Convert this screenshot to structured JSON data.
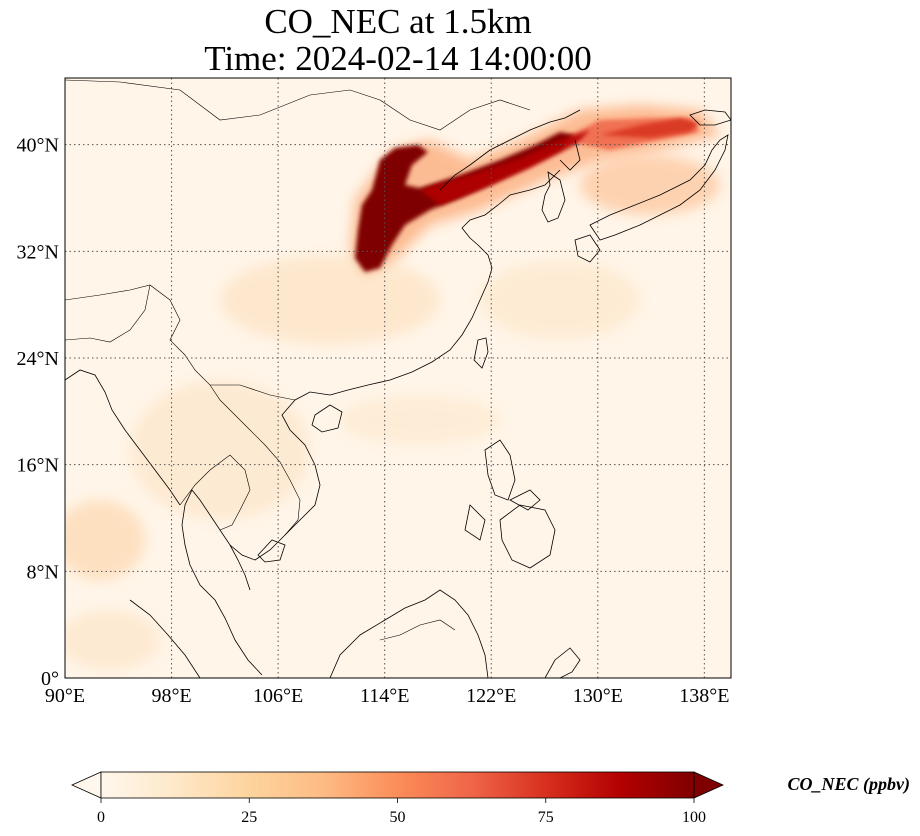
{
  "figure": {
    "title_line1": "CO_NEC at 1.5km",
    "title_line2": "Time: 2024-02-14 14:00:00"
  },
  "map": {
    "lon_range": [
      90,
      140
    ],
    "lat_range": [
      0,
      45
    ],
    "x_ticks": [
      {
        "value": 90,
        "label": "90°E"
      },
      {
        "value": 98,
        "label": "98°E"
      },
      {
        "value": 106,
        "label": "106°E"
      },
      {
        "value": 114,
        "label": "114°E"
      },
      {
        "value": 122,
        "label": "122°E"
      },
      {
        "value": 130,
        "label": "130°E"
      },
      {
        "value": 138,
        "label": "138°E"
      }
    ],
    "y_ticks": [
      {
        "value": 0,
        "label": "0°"
      },
      {
        "value": 8,
        "label": "8°N"
      },
      {
        "value": 16,
        "label": "16°N"
      },
      {
        "value": 24,
        "label": "24°N"
      },
      {
        "value": 32,
        "label": "32°N"
      },
      {
        "value": 40,
        "label": "40°N"
      }
    ],
    "gridlines": true
  },
  "colorbar": {
    "label": "CO_NEC (ppbv)",
    "colormap": "OrRd",
    "range": [
      0,
      100
    ],
    "extend": "both",
    "ticks": [
      {
        "value": 0,
        "label": "0"
      },
      {
        "value": 25,
        "label": "25"
      },
      {
        "value": 50,
        "label": "50"
      },
      {
        "value": 75,
        "label": "75"
      },
      {
        "value": 100,
        "label": "100"
      }
    ]
  },
  "colors": {
    "background": "#fff7ec",
    "light": "#fde3c4",
    "mid": "#fdbb84",
    "orange": "#ef6548",
    "red": "#d7301f",
    "dark": "#7f0000"
  }
}
